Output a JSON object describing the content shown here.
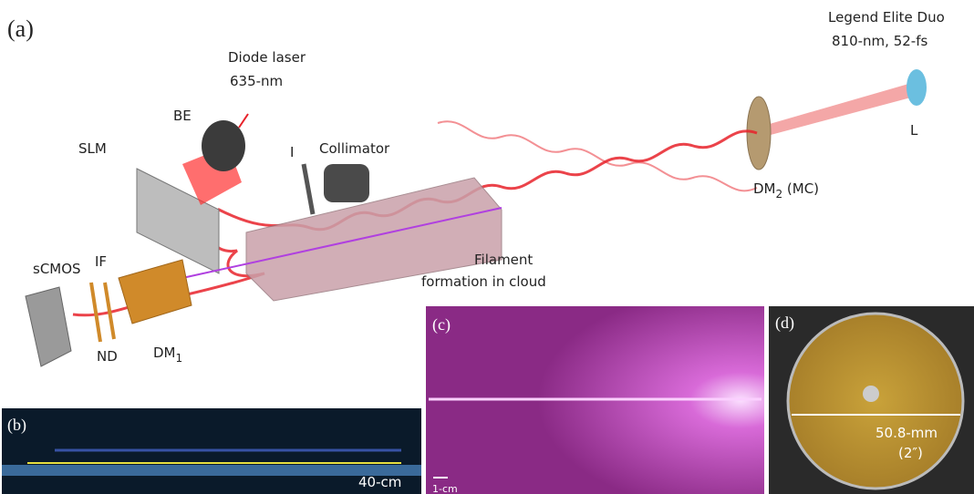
{
  "panel_a": {
    "label": "(a)",
    "laser": {
      "name": "Legend Elite Duo",
      "spec": "810-nm, 52-fs"
    },
    "diode": {
      "name": "Diode laser",
      "wavelength": "635-nm"
    },
    "components": {
      "be": "BE",
      "slm": "SLM",
      "iris": "I",
      "collimator": "Collimator",
      "lens": "L",
      "dm2": {
        "text": "DM",
        "sub": "2",
        "suffix": " (MC)"
      },
      "scmos": "sCMOS",
      "if": "IF",
      "nd": "ND",
      "dm1": {
        "text": "DM",
        "sub": "1"
      }
    },
    "cloud": {
      "line1": "Filament",
      "line2": "formation in cloud"
    }
  },
  "panel_b": {
    "label": "(b)",
    "scale": "40-cm"
  },
  "panel_c": {
    "label": "(c)",
    "scale": "1-cm"
  },
  "panel_d": {
    "label": "(d)",
    "diameter": "50.8-mm",
    "inches": "(2″)"
  }
}
